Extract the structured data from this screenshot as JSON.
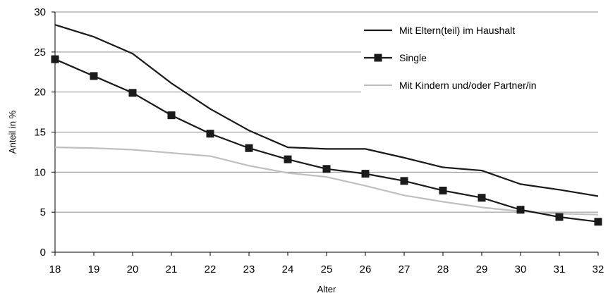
{
  "chart_data": {
    "type": "line",
    "x": [
      18,
      19,
      20,
      21,
      22,
      23,
      24,
      25,
      26,
      27,
      28,
      29,
      30,
      31,
      32
    ],
    "xlabel": "Alter",
    "ylabel": "Anteil in %",
    "ylim": [
      0,
      30
    ],
    "yticks": [
      0,
      5,
      10,
      15,
      20,
      25,
      30
    ],
    "grid": "horizontal",
    "legend_position": "top-right",
    "series": [
      {
        "name": "Mit Eltern(teil) im Haushalt",
        "color": "#1a1a1a",
        "marker": "none",
        "values": [
          28.4,
          26.9,
          24.8,
          21.1,
          17.9,
          15.2,
          13.1,
          12.9,
          12.9,
          11.8,
          10.6,
          10.2,
          8.5,
          7.8,
          7.0
        ]
      },
      {
        "name": "Single",
        "color": "#1a1a1a",
        "marker": "square",
        "values": [
          24.1,
          22.0,
          19.9,
          17.1,
          14.8,
          13.0,
          11.6,
          10.4,
          9.8,
          8.9,
          7.7,
          6.8,
          5.3,
          4.4,
          3.8
        ]
      },
      {
        "name": "Mit Kindern und/oder Partner/in",
        "color": "#bfbfbf",
        "marker": "none",
        "values": [
          13.1,
          13.0,
          12.8,
          12.4,
          12.0,
          10.8,
          9.9,
          9.4,
          8.3,
          7.1,
          6.3,
          5.6,
          5.1,
          4.8,
          4.7
        ]
      }
    ]
  }
}
